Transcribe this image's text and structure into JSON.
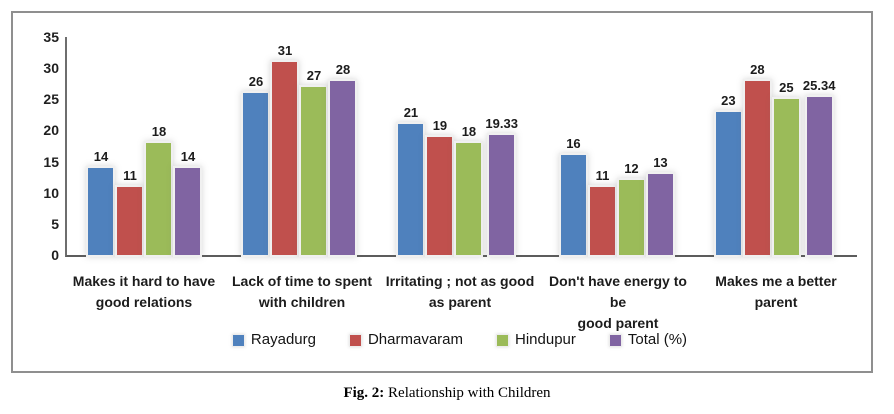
{
  "figure": {
    "caption_prefix": "Fig. 2:",
    "caption_text": " Relationship with Children"
  },
  "chart_data": {
    "type": "bar",
    "title": "",
    "xlabel": "",
    "ylabel": "",
    "categories": [
      "Makes it hard to have good relations",
      "Lack of time to spent with children",
      "Irritating ; not as good as parent",
      "Don't have energy to be good parent",
      "Makes me a better parent"
    ],
    "x_label_lines": [
      [
        "Makes it hard to have",
        "good relations"
      ],
      [
        "Lack of time to spent",
        "with children"
      ],
      [
        "Irritating ; not as good",
        "as parent"
      ],
      [
        "Don't have energy to be",
        "good parent"
      ],
      [
        "Makes me a better",
        "parent"
      ]
    ],
    "series": [
      {
        "name": "Rayadurg",
        "color": "#4F81BD",
        "values": [
          14,
          26,
          21,
          16,
          23
        ]
      },
      {
        "name": "Dharmavaram",
        "color": "#C0504D",
        "values": [
          11,
          31,
          19,
          11,
          28
        ]
      },
      {
        "name": "Hindupur",
        "color": "#9BBB59",
        "values": [
          18,
          27,
          18,
          12,
          25
        ]
      },
      {
        "name": "Total (%)",
        "color": "#8064A2",
        "values": [
          14,
          28,
          19.33,
          13,
          25.34
        ]
      }
    ],
    "ylim": [
      0,
      35
    ],
    "yticks": [
      0,
      5,
      10,
      15,
      20,
      25,
      30,
      35
    ],
    "grid": false,
    "data_labels": true,
    "legend_position": "bottom"
  }
}
